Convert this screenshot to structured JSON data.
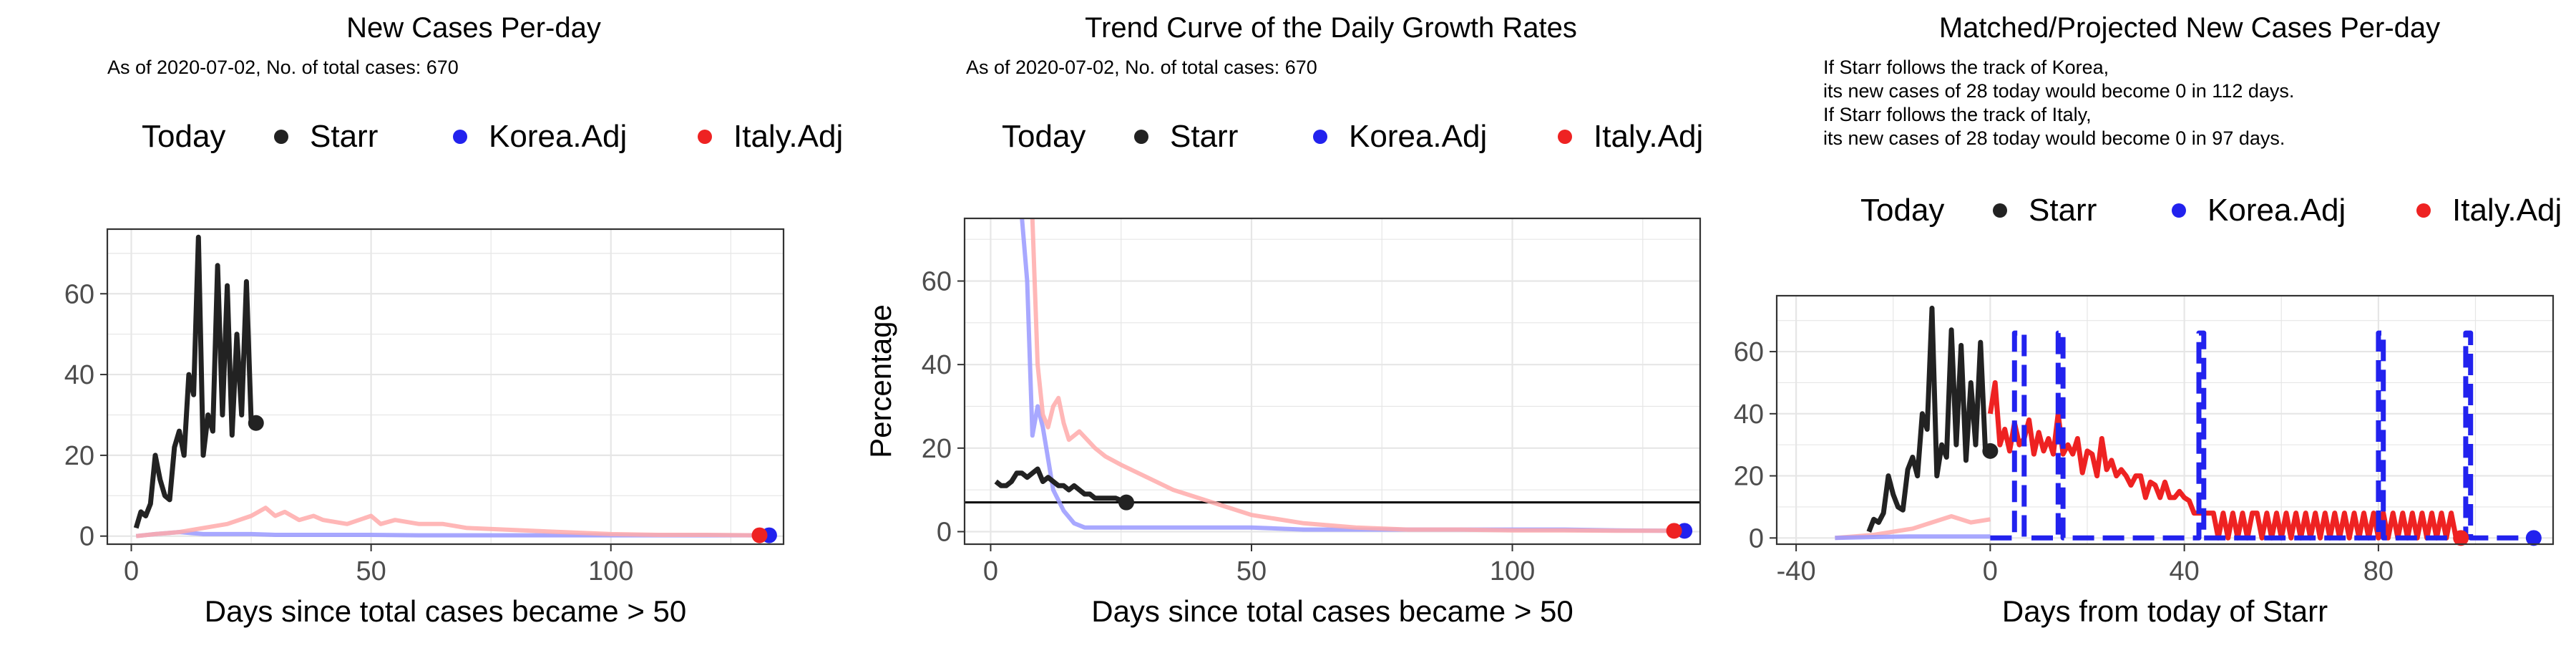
{
  "colors": {
    "starr": "#222222",
    "korea": "#2222ee",
    "italy": "#ee2222",
    "korea_faded": "#9999ff",
    "italy_faded": "#ffaaaa",
    "grid": "#e6e6e6",
    "axis_text": "#4d4d4d",
    "background": "#ffffff"
  },
  "chart_data": [
    {
      "type": "line",
      "title": "New Cases Per-day",
      "subtitle": "As of 2020-07-02, No. of total cases: 670",
      "legend": {
        "title": "Today",
        "placement": "top",
        "entries": [
          "Starr",
          "Korea.Adj",
          "Italy.Adj"
        ]
      },
      "xlabel": "Days since total cases became > 50",
      "ylabel": "",
      "xlim": [
        -5,
        136
      ],
      "ylim": [
        -2,
        76
      ],
      "xticks": [
        0,
        50,
        100
      ],
      "yticks": [
        0,
        20,
        40,
        60
      ],
      "grid": true,
      "series": [
        {
          "name": "Korea.Adj",
          "style": "faded",
          "x": [
            1,
            5,
            10,
            15,
            20,
            25,
            30,
            40,
            50,
            60,
            70,
            80,
            90,
            100,
            110,
            120,
            130,
            133
          ],
          "y": [
            0,
            0.5,
            1,
            0.5,
            0.5,
            0.5,
            0.3,
            0.3,
            0.3,
            0.2,
            0.2,
            0.2,
            0.2,
            0.2,
            0.2,
            0.2,
            0.2,
            0.2
          ]
        },
        {
          "name": "Italy.Adj",
          "style": "faded",
          "x": [
            1,
            5,
            10,
            15,
            20,
            25,
            28,
            30,
            32,
            35,
            38,
            40,
            45,
            50,
            52,
            55,
            60,
            65,
            70,
            80,
            90,
            100,
            110,
            120,
            130,
            131
          ],
          "y": [
            0,
            0.5,
            1,
            2,
            3,
            5,
            7,
            5,
            6,
            4,
            5,
            4,
            3,
            5,
            3,
            4,
            3,
            3,
            2,
            1.5,
            1,
            0.5,
            0.3,
            0.3,
            0.2,
            0.2
          ]
        },
        {
          "name": "Starr",
          "style": "solid",
          "x": [
            1,
            2,
            3,
            4,
            5,
            6,
            7,
            8,
            9,
            10,
            11,
            12,
            13,
            14,
            15,
            16,
            17,
            18,
            19,
            20,
            21,
            22,
            23,
            24,
            25,
            26
          ],
          "y": [
            2,
            6,
            5,
            8,
            20,
            14,
            10,
            9,
            22,
            26,
            20,
            40,
            35,
            74,
            20,
            30,
            26,
            67,
            30,
            62,
            25,
            50,
            30,
            63,
            28,
            28
          ]
        },
        {
          "name": "Today",
          "style": "points",
          "points": [
            {
              "x": 26,
              "y": 28,
              "series": "Starr"
            },
            {
              "x": 133,
              "y": 0.2,
              "series": "Korea.Adj"
            },
            {
              "x": 131,
              "y": 0.2,
              "series": "Italy.Adj"
            }
          ]
        }
      ]
    },
    {
      "type": "line",
      "title": "Trend Curve of the Daily Growth Rates",
      "subtitle": "As of 2020-07-02, No. of total cases: 670",
      "legend": {
        "title": "Today",
        "placement": "top",
        "entries": [
          "Starr",
          "Korea.Adj",
          "Italy.Adj"
        ]
      },
      "xlabel": "Days since total cases became > 50",
      "ylabel": "Percentage",
      "xlim": [
        -5,
        136
      ],
      "ylim": [
        -3,
        75
      ],
      "xticks": [
        0,
        50,
        100
      ],
      "yticks": [
        0,
        20,
        40,
        60
      ],
      "grid": true,
      "hline": 7,
      "series": [
        {
          "name": "Korea.Adj",
          "style": "faded",
          "x": [
            6,
            7,
            8,
            9,
            10,
            12,
            14,
            16,
            18,
            20,
            25,
            30,
            40,
            50,
            60,
            70,
            80,
            90,
            100,
            110,
            120,
            130,
            133
          ],
          "y": [
            75,
            60,
            23,
            30,
            25,
            10,
            5,
            2,
            1,
            1,
            1,
            1,
            1,
            1,
            0.5,
            0.5,
            0.5,
            0.5,
            0.5,
            0.5,
            0.3,
            0.2,
            0.2
          ]
        },
        {
          "name": "Italy.Adj",
          "style": "faded",
          "x": [
            8,
            9,
            10,
            11,
            12,
            13,
            14,
            15,
            17,
            20,
            22,
            25,
            30,
            35,
            40,
            45,
            50,
            55,
            60,
            70,
            80,
            90,
            100,
            110,
            120,
            130,
            131
          ],
          "y": [
            75,
            40,
            28,
            25,
            30,
            32,
            26,
            22,
            24,
            20,
            18,
            16,
            13,
            10,
            8,
            6,
            4,
            3,
            2,
            1,
            0.5,
            0.5,
            0.3,
            0.3,
            0.2,
            0.2,
            0.2
          ]
        },
        {
          "name": "Starr",
          "style": "solid",
          "x": [
            1,
            2,
            3,
            4,
            5,
            6,
            7,
            8,
            9,
            10,
            11,
            12,
            13,
            14,
            15,
            16,
            17,
            18,
            19,
            20,
            21,
            22,
            23,
            24,
            25,
            26
          ],
          "y": [
            12,
            11,
            11,
            12,
            14,
            14,
            13,
            14,
            15,
            12,
            13,
            12,
            11,
            11,
            10,
            11,
            10,
            9,
            9,
            8,
            8,
            8,
            8,
            8,
            7.5,
            7
          ]
        },
        {
          "name": "Today",
          "style": "points",
          "points": [
            {
              "x": 26,
              "y": 7,
              "series": "Starr"
            },
            {
              "x": 133,
              "y": 0.2,
              "series": "Korea.Adj"
            },
            {
              "x": 131,
              "y": 0.2,
              "series": "Italy.Adj"
            }
          ]
        }
      ]
    },
    {
      "type": "line",
      "title": "Matched/Projected New Cases Per-day",
      "subtitle": "If Starr follows the track of Korea,\nits new cases of 28 today would become 0 in 112 days.\nIf Starr follows the track of Italy,\nits new cases of 28 today would become 0 in 97 days.",
      "legend": {
        "title": "Today",
        "placement": "top",
        "entries": [
          "Starr",
          "Korea.Adj",
          "Italy.Adj"
        ]
      },
      "xlabel": "Days from today of Starr",
      "ylabel": "",
      "xlim": [
        -44,
        116
      ],
      "ylim": [
        -2,
        78
      ],
      "xticks": [
        -40,
        0,
        40,
        80
      ],
      "yticks": [
        0,
        20,
        40,
        60
      ],
      "grid": true,
      "series": [
        {
          "name": "Italy.Adj (history)",
          "style": "faded",
          "color": "italy",
          "x": [
            -32,
            -28,
            -24,
            -20,
            -16,
            -12,
            -8,
            -4,
            0
          ],
          "y": [
            0,
            0.5,
            1,
            2,
            3,
            5,
            7,
            5,
            6
          ]
        },
        {
          "name": "Korea.Adj (history)",
          "style": "faded",
          "color": "korea",
          "x": [
            -32,
            -24,
            -16,
            -8,
            0
          ],
          "y": [
            0,
            0.3,
            0.5,
            0.5,
            0.5
          ]
        },
        {
          "name": "Starr",
          "style": "solid",
          "x": [
            -25,
            -24,
            -23,
            -22,
            -21,
            -20,
            -19,
            -18,
            -17,
            -16,
            -15,
            -14,
            -13,
            -12,
            -11,
            -10,
            -9,
            -8,
            -7,
            -6,
            -5,
            -4,
            -3,
            -2,
            -1,
            0
          ],
          "y": [
            2,
            6,
            5,
            8,
            20,
            14,
            10,
            9,
            22,
            26,
            20,
            40,
            35,
            74,
            20,
            30,
            26,
            67,
            30,
            62,
            25,
            50,
            30,
            63,
            28,
            28
          ]
        },
        {
          "name": "Italy.Adj",
          "style": "projected",
          "x": [
            0,
            1,
            2,
            3,
            4,
            5,
            6,
            7,
            8,
            9,
            10,
            11,
            12,
            13,
            14,
            15,
            16,
            17,
            18,
            19,
            20,
            21,
            22,
            23,
            24,
            25,
            26,
            27,
            28,
            29,
            30,
            31,
            32,
            33,
            34,
            35,
            36,
            37,
            38,
            39,
            40,
            41,
            42,
            43,
            44,
            45,
            46,
            47,
            48,
            49,
            50,
            51,
            52,
            53,
            54,
            55,
            56,
            57,
            58,
            59,
            60,
            61,
            62,
            63,
            64,
            65,
            66,
            67,
            68,
            69,
            70,
            71,
            72,
            73,
            74,
            75,
            76,
            77,
            78,
            79,
            80,
            81,
            82,
            83,
            84,
            85,
            86,
            87,
            88,
            89,
            90,
            91,
            92,
            93,
            94,
            95,
            96,
            97
          ],
          "y": [
            40,
            50,
            30,
            35,
            28,
            37,
            30,
            32,
            38,
            27,
            34,
            28,
            32,
            27,
            40,
            27,
            30,
            27,
            32,
            21,
            28,
            27,
            20,
            32,
            22,
            25,
            20,
            22,
            20,
            17,
            20,
            20,
            13,
            18,
            17,
            13,
            18,
            13,
            13,
            15,
            13,
            12,
            8,
            8,
            8,
            8,
            8,
            0,
            8,
            0,
            8,
            0,
            8,
            0,
            8,
            8,
            0,
            8,
            0,
            8,
            0,
            8,
            0,
            8,
            0,
            8,
            0,
            8,
            0,
            8,
            0,
            8,
            0,
            8,
            0,
            8,
            0,
            8,
            0,
            8,
            0,
            8,
            0,
            8,
            0,
            8,
            0,
            8,
            0,
            8,
            0,
            8,
            0,
            8,
            0,
            8,
            0,
            0
          ]
        },
        {
          "name": "Korea.Adj",
          "style": "projected-dashed",
          "x": [
            0,
            5,
            5,
            7,
            7,
            8,
            8,
            14,
            14,
            15,
            15,
            16,
            16,
            43,
            43,
            44,
            44,
            45,
            45,
            80,
            80,
            81,
            81,
            82,
            82,
            98,
            98,
            99,
            99,
            100,
            100,
            112
          ],
          "y": [
            0,
            0,
            66,
            66,
            0,
            0,
            0,
            0,
            66,
            66,
            0,
            0,
            0,
            0,
            66,
            66,
            0,
            0,
            0,
            0,
            66,
            66,
            0,
            0,
            0,
            0,
            66,
            66,
            0,
            0,
            0,
            0
          ]
        },
        {
          "name": "Today",
          "style": "points",
          "points": [
            {
              "x": 0,
              "y": 28,
              "series": "Starr"
            },
            {
              "x": 112,
              "y": 0,
              "series": "Korea.Adj"
            },
            {
              "x": 97,
              "y": 0,
              "series": "Italy.Adj"
            }
          ]
        }
      ]
    }
  ]
}
